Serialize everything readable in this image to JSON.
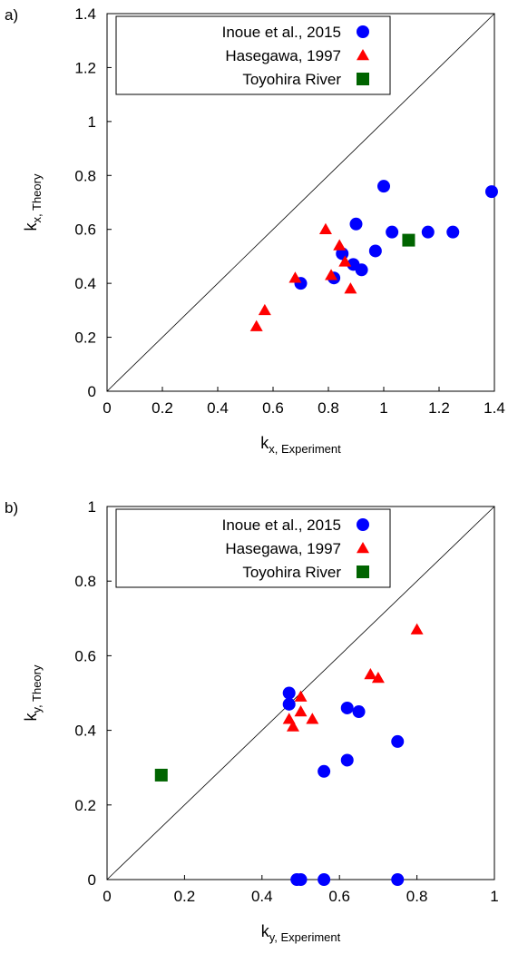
{
  "colors": {
    "inoue": "#0000ff",
    "hasegawa": "#ff0000",
    "toyohira": "#006400",
    "axis": "#000000"
  },
  "chart_data": [
    {
      "type": "scatter",
      "panel_label": "a)",
      "xlim": [
        0,
        1.4
      ],
      "ylim": [
        0,
        1.4
      ],
      "xticks": [
        "0",
        "0.2",
        "0.4",
        "0.6",
        "0.8",
        "1",
        "1.2",
        "1.4"
      ],
      "yticks": [
        "0",
        "0.2",
        "0.4",
        "0.6",
        "0.8",
        "1",
        "1.2",
        "1.4"
      ],
      "xlabel": {
        "main": "k",
        "sub": "x, Experiment"
      },
      "ylabel": {
        "main": "k",
        "sub": "x, Theory"
      },
      "reference_line": "y = x",
      "legend_position": "top-left",
      "series": [
        {
          "name": "Inoue et al., 2015",
          "marker": "circle",
          "color": "#0000ff",
          "points": [
            [
              0.7,
              0.4
            ],
            [
              0.82,
              0.42
            ],
            [
              0.85,
              0.51
            ],
            [
              0.89,
              0.47
            ],
            [
              0.9,
              0.62
            ],
            [
              0.92,
              0.45
            ],
            [
              0.97,
              0.52
            ],
            [
              1.0,
              0.76
            ],
            [
              1.03,
              0.59
            ],
            [
              1.16,
              0.59
            ],
            [
              1.25,
              0.59
            ],
            [
              1.39,
              0.74
            ]
          ]
        },
        {
          "name": "Hasegawa, 1997",
          "marker": "triangle",
          "color": "#ff0000",
          "points": [
            [
              0.54,
              0.24
            ],
            [
              0.57,
              0.3
            ],
            [
              0.68,
              0.42
            ],
            [
              0.79,
              0.6
            ],
            [
              0.81,
              0.43
            ],
            [
              0.84,
              0.54
            ],
            [
              0.86,
              0.48
            ],
            [
              0.88,
              0.38
            ]
          ]
        },
        {
          "name": "Toyohira River",
          "marker": "square",
          "color": "#006400",
          "points": [
            [
              1.09,
              0.56
            ]
          ]
        }
      ]
    },
    {
      "type": "scatter",
      "panel_label": "b)",
      "xlim": [
        0,
        1
      ],
      "ylim": [
        0,
        1
      ],
      "xticks": [
        "0",
        "0.2",
        "0.4",
        "0.6",
        "0.8",
        "1"
      ],
      "yticks": [
        "0",
        "0.2",
        "0.4",
        "0.6",
        "0.8",
        "1"
      ],
      "xlabel": {
        "main": "k",
        "sub": "y, Experiment"
      },
      "ylabel": {
        "main": "k",
        "sub": "y, Theory"
      },
      "reference_line": "y = x",
      "legend_position": "top-left",
      "series": [
        {
          "name": "Inoue et al., 2015",
          "marker": "circle",
          "color": "#0000ff",
          "points": [
            [
              0.47,
              0.5
            ],
            [
              0.47,
              0.47
            ],
            [
              0.56,
              0.29
            ],
            [
              0.62,
              0.46
            ],
            [
              0.62,
              0.32
            ],
            [
              0.65,
              0.45
            ],
            [
              0.75,
              0.37
            ],
            [
              0.49,
              0.0
            ],
            [
              0.5,
              0.0
            ],
            [
              0.56,
              0.0
            ],
            [
              0.75,
              0.0
            ]
          ]
        },
        {
          "name": "Hasegawa, 1997",
          "marker": "triangle",
          "color": "#ff0000",
          "points": [
            [
              0.47,
              0.43
            ],
            [
              0.48,
              0.41
            ],
            [
              0.5,
              0.49
            ],
            [
              0.5,
              0.45
            ],
            [
              0.53,
              0.43
            ],
            [
              0.68,
              0.55
            ],
            [
              0.7,
              0.54
            ],
            [
              0.8,
              0.67
            ]
          ]
        },
        {
          "name": "Toyohira River",
          "marker": "square",
          "color": "#006400",
          "points": [
            [
              0.14,
              0.28
            ]
          ]
        }
      ]
    }
  ]
}
